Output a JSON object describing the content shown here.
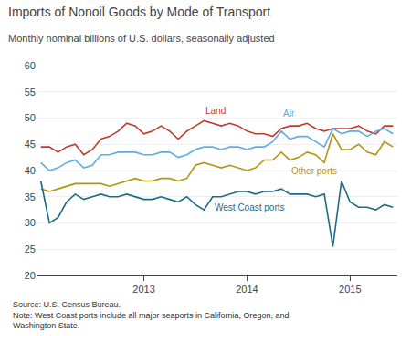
{
  "chart_data": {
    "type": "line",
    "title": "Imports of Nonoil Goods by Mode of Transport",
    "subtitle": "Monthly nominal billions of U.S. dollars, seasonally adjusted",
    "note": "Source: U.S. Census Bureau.\nNote: West Coast ports include all major seaports in California, Oregon, and\nWashington State.",
    "categories": [
      null,
      null,
      null,
      null,
      null,
      null,
      null,
      null,
      null,
      null,
      null,
      null,
      "2013",
      null,
      null,
      null,
      null,
      null,
      null,
      null,
      null,
      null,
      null,
      null,
      "2014",
      null,
      null,
      null,
      null,
      null,
      null,
      null,
      null,
      null,
      null,
      null,
      "2015",
      null,
      null,
      null,
      null,
      null
    ],
    "series": [
      {
        "name": "Land",
        "color": "#c0392b",
        "values": [
          44.5,
          44.5,
          43.5,
          44.5,
          45.0,
          43.0,
          44.0,
          46.0,
          46.5,
          47.5,
          49.0,
          48.5,
          47.0,
          47.5,
          48.5,
          47.5,
          46.0,
          47.5,
          48.5,
          49.5,
          49.0,
          48.5,
          49.0,
          48.5,
          47.5,
          47.0,
          47.0,
          46.5,
          48.0,
          48.5,
          48.5,
          49.0,
          48.0,
          47.5,
          48.0,
          48.0,
          48.0,
          48.5,
          47.5,
          47.0,
          48.5,
          48.5
        ]
      },
      {
        "name": "Air",
        "color": "#5dade2",
        "values": [
          41.5,
          40.0,
          40.5,
          41.5,
          42.0,
          40.5,
          41.0,
          43.0,
          43.0,
          43.5,
          43.5,
          43.5,
          43.0,
          43.0,
          43.5,
          43.5,
          42.5,
          43.0,
          44.0,
          44.5,
          44.5,
          44.0,
          44.5,
          44.5,
          44.0,
          44.5,
          44.5,
          45.5,
          47.5,
          46.0,
          46.5,
          46.5,
          45.5,
          44.5,
          48.0,
          47.0,
          47.5,
          47.5,
          46.5,
          47.5,
          48.0,
          47.0
        ]
      },
      {
        "name": "Other ports",
        "color": "#b7950b",
        "values": [
          36.5,
          36.0,
          36.5,
          37.0,
          37.5,
          37.5,
          37.5,
          37.5,
          37.0,
          37.5,
          38.0,
          38.5,
          38.0,
          38.0,
          38.5,
          38.5,
          38.0,
          38.5,
          41.0,
          41.5,
          41.0,
          40.5,
          41.0,
          40.5,
          40.0,
          40.5,
          42.0,
          42.0,
          43.5,
          42.0,
          42.5,
          43.5,
          43.0,
          41.5,
          47.0,
          44.0,
          44.0,
          45.0,
          43.5,
          43.0,
          45.5,
          44.5
        ]
      },
      {
        "name": "West Coast ports",
        "color": "#1a6b8a",
        "values": [
          38.0,
          30.0,
          31.0,
          34.0,
          35.5,
          34.5,
          35.0,
          35.5,
          35.0,
          35.0,
          35.5,
          35.0,
          34.5,
          34.5,
          35.0,
          34.5,
          34.0,
          35.0,
          33.5,
          32.5,
          35.0,
          35.0,
          35.5,
          36.0,
          36.0,
          35.5,
          36.0,
          36.0,
          36.5,
          35.5,
          35.5,
          35.5,
          35.0,
          35.5,
          25.5,
          38.0,
          34.0,
          33.0,
          33.0,
          32.5,
          33.5,
          33.0
        ]
      }
    ],
    "annotations": [
      {
        "text": "Land",
        "color": "#c0392b"
      },
      {
        "text": "Air",
        "color": "#5dade2"
      },
      {
        "text": "Other ports",
        "color": "#b7950b"
      },
      {
        "text": "West Coast ports",
        "color": "#1a6b8a"
      }
    ],
    "ylim": [
      20,
      60
    ],
    "yticks": [
      20,
      25,
      30,
      35,
      40,
      45,
      50,
      55,
      60
    ],
    "grid": true
  }
}
